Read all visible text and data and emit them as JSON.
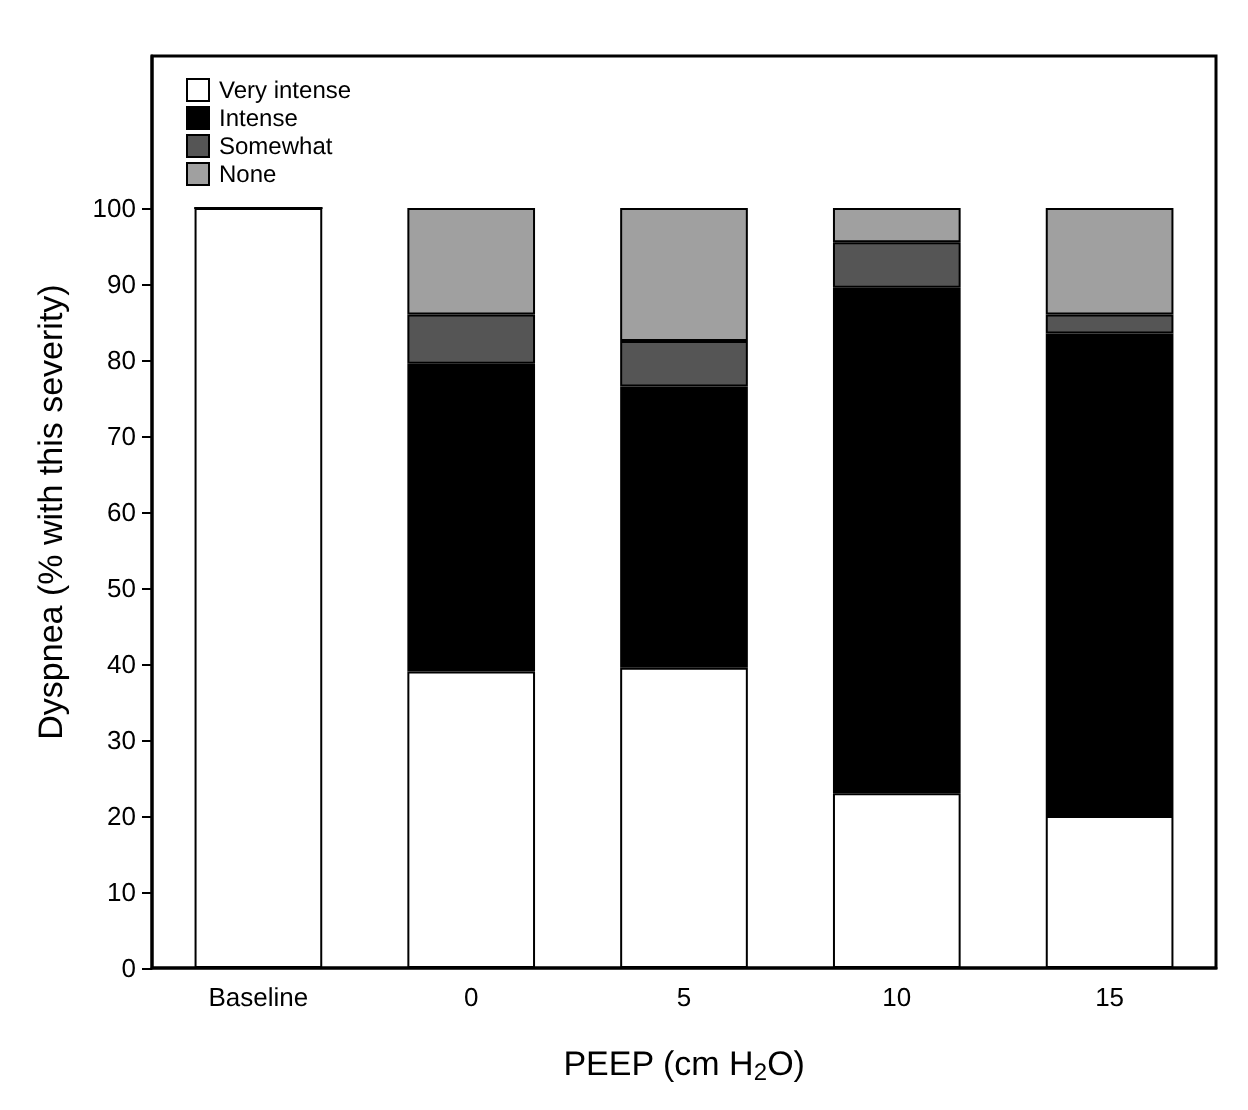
{
  "chart_data": {
    "type": "bar",
    "stacked": true,
    "xlabel": "PEEP (cm H$_{2}$O)",
    "ylabel": "Dyspnea (% with this severity)",
    "categories": [
      "Baseline",
      "0",
      "5",
      "10",
      "15"
    ],
    "series": [
      {
        "name": "Very intense",
        "color": "#ffffff",
        "values": [
          100,
          39,
          39.5,
          23,
          20
        ]
      },
      {
        "name": "Intense",
        "color": "#000000",
        "values": [
          0,
          40.5,
          37,
          66.5,
          63.5
        ]
      },
      {
        "name": "Somewhat",
        "color": "#555555",
        "values": [
          0,
          6.5,
          6,
          6,
          2.5
        ]
      },
      {
        "name": "None",
        "color": "#a0a0a0",
        "values": [
          0,
          14,
          17.5,
          4.5,
          14
        ]
      }
    ],
    "ylim": [
      0,
      120
    ],
    "yticks": [
      0,
      10,
      20,
      30,
      40,
      50,
      60,
      70,
      80,
      90,
      100
    ],
    "grid": false,
    "legend": "top left"
  }
}
